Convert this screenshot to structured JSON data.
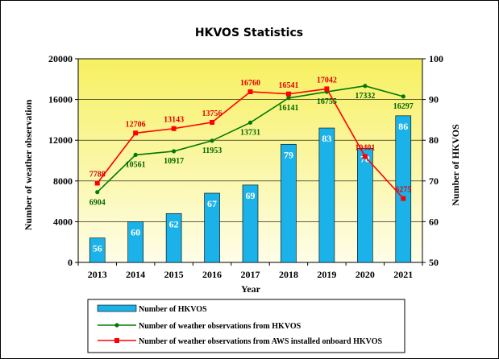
{
  "chart_data": {
    "type": "bar",
    "title": "HKVOS Statistics",
    "xlabel": "Year",
    "ylabel_left": "Number of weather observation",
    "ylabel_right": "Number of HKVOS",
    "categories": [
      "2013",
      "2014",
      "2015",
      "2016",
      "2017",
      "2018",
      "2019",
      "2020",
      "2021"
    ],
    "ylim_left": [
      0,
      20000
    ],
    "yticks_left": [
      "0",
      "4000",
      "8000",
      "12000",
      "16000",
      "20000"
    ],
    "ylim_right": [
      50,
      100
    ],
    "yticks_right": [
      "50",
      "60",
      "70",
      "80",
      "90",
      "100"
    ],
    "series": [
      {
        "name": "Number of HKVOS",
        "type": "bar",
        "axis": "right",
        "color": "#1ab2e8",
        "values": [
          56,
          60,
          62,
          67,
          69,
          79,
          83,
          78,
          86
        ]
      },
      {
        "name": "Number of weather observations from HKVOS",
        "type": "line",
        "axis": "left",
        "color": "#007a00",
        "values": [
          6904,
          10561,
          10917,
          11953,
          13731,
          16141,
          16755,
          17332,
          16297
        ]
      },
      {
        "name": "Number of weather observations from AWS installed onboard HKVOS",
        "type": "line",
        "axis": "left",
        "color": "#ff0000",
        "values": [
          7788,
          12706,
          13143,
          13756,
          16760,
          16541,
          17042,
          10401,
          6275
        ]
      }
    ],
    "background": "yellow-gradient",
    "legend_position": "bottom"
  }
}
